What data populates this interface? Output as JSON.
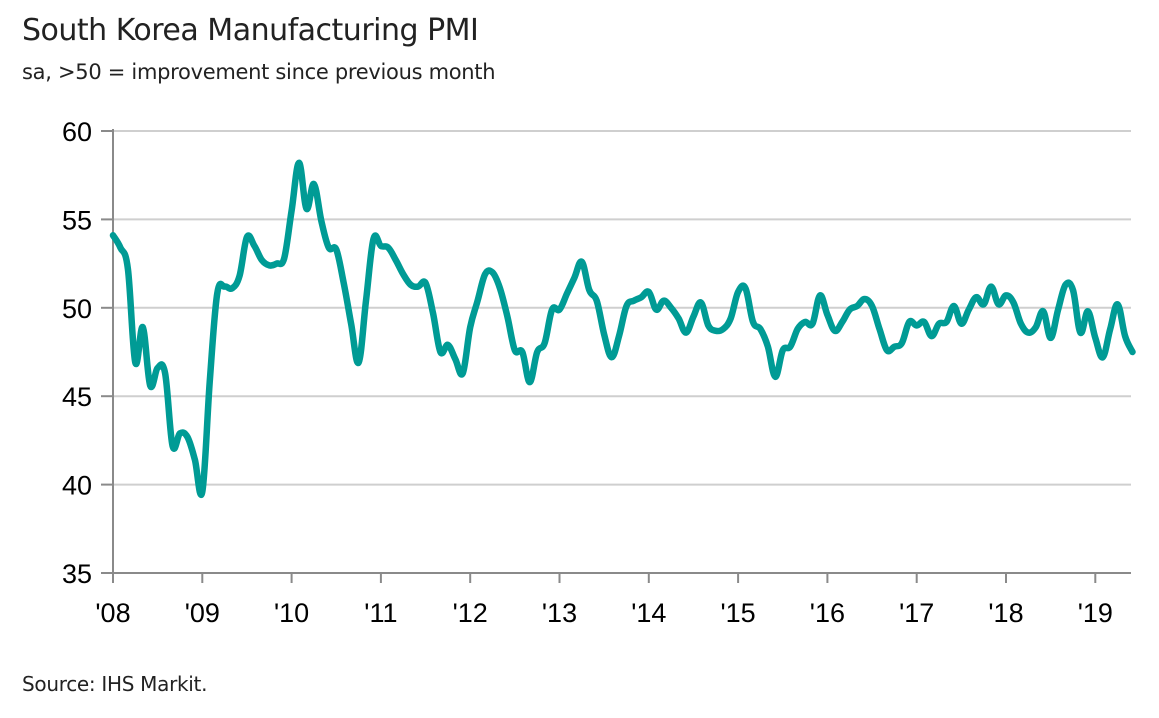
{
  "chart_data": {
    "type": "line",
    "title": "South Korea Manufacturing PMI",
    "subtitle": "sa, >50 = improvement since previous month",
    "source": "Source: IHS Markit.",
    "xlabel": "",
    "ylabel": "",
    "ylim": [
      35,
      60
    ],
    "yticks": [
      35,
      40,
      45,
      50,
      55,
      60
    ],
    "ytick_labels": [
      "35",
      "40",
      "45",
      "50",
      "55",
      "60"
    ],
    "xtick_labels": [
      "'08",
      "'09",
      "'10",
      "'11",
      "'12",
      "'13",
      "'14",
      "'15",
      "'16",
      "'17",
      "'18",
      "'19"
    ],
    "x_start": "2008-01",
    "x_end": "2019-06",
    "grid": true,
    "line_color": "#009b95",
    "series": [
      {
        "name": "South Korea Manufacturing PMI",
        "frequency": "monthly",
        "start": "2008-01",
        "values": [
          54.1,
          53.4,
          52.2,
          46.9,
          48.9,
          45.6,
          46.6,
          46.3,
          42.2,
          42.9,
          42.7,
          41.4,
          39.6,
          45.8,
          50.8,
          51.2,
          51.1,
          51.8,
          54.0,
          53.5,
          52.7,
          52.4,
          52.5,
          52.8,
          55.5,
          58.2,
          55.6,
          57.0,
          54.9,
          53.4,
          53.3,
          51.4,
          49.1,
          46.9,
          50.4,
          53.9,
          53.5,
          53.4,
          52.7,
          51.9,
          51.3,
          51.2,
          51.4,
          49.7,
          47.5,
          47.9,
          47.1,
          46.3,
          48.9,
          50.4,
          51.9,
          52.0,
          51.1,
          49.5,
          47.6,
          47.5,
          45.8,
          47.5,
          48.0,
          49.9,
          49.9,
          50.8,
          51.7,
          52.6,
          51.0,
          50.4,
          48.5,
          47.2,
          48.4,
          50.1,
          50.4,
          50.6,
          50.9,
          49.9,
          50.4,
          50.0,
          49.4,
          48.6,
          49.5,
          50.3,
          49.0,
          48.7,
          48.8,
          49.4,
          50.9,
          51.1,
          49.2,
          48.8,
          47.8,
          46.1,
          47.6,
          47.8,
          48.8,
          49.2,
          49.1,
          50.7,
          49.6,
          48.7,
          49.2,
          49.9,
          50.1,
          50.5,
          50.1,
          48.8,
          47.6,
          47.8,
          48.0,
          49.2,
          49.0,
          49.2,
          48.4,
          49.1,
          49.2,
          50.1,
          49.1,
          49.9,
          50.6,
          50.2,
          51.2,
          50.2,
          50.7,
          50.3,
          49.1,
          48.6,
          48.9,
          49.8,
          48.3,
          49.9,
          51.3,
          51.0,
          48.6,
          49.8,
          48.3,
          47.2,
          48.8,
          50.2,
          48.4,
          47.5
        ]
      }
    ]
  }
}
